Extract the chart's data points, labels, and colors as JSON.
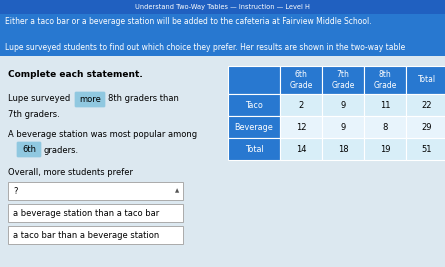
{
  "title": "Understand Two-Way Tables — Instruction — Level H",
  "header_text_line1": "Either a taco bar or a beverage station will be added to the cafeteria at Fairview Middle School.",
  "header_text_line2": "Lupe surveyed students to find out which choice they prefer. Her results are shown in the two-way table",
  "title_bg": "#2060c0",
  "header_bg": "#2878d0",
  "body_bg": "#dce8f0",
  "complete_text": "Complete each statement.",
  "statement1_pre": "Lupe surveyed",
  "statement1_highlight": "more",
  "statement1_mid": "8th graders than",
  "statement1_end": "7th graders.",
  "statement2_pre": "A beverage station was most popular among",
  "statement2_highlight": "6th",
  "statement2_post": "graders.",
  "statement3_pre": "Overall, more students prefer",
  "dropdown_text": "?",
  "option1": "a beverage station than a taco bar",
  "option2": "a taco bar than a beverage station",
  "table_headers": [
    "6th\nGrade",
    "7th\nGrade",
    "8th\nGrade",
    "Total"
  ],
  "table_rows": [
    "Taco",
    "Beverage",
    "Total"
  ],
  "table_data": [
    [
      2,
      9,
      11,
      22
    ],
    [
      12,
      9,
      8,
      29
    ],
    [
      14,
      18,
      19,
      51
    ]
  ],
  "table_header_bg": "#2878d0",
  "table_cell_bg_light": "#d8eef8",
  "table_cell_bg_white": "#e8f4fc",
  "highlight_bg": "#90c8e0",
  "dropdown_border": "#aaaaaa",
  "white": "#ffffff"
}
